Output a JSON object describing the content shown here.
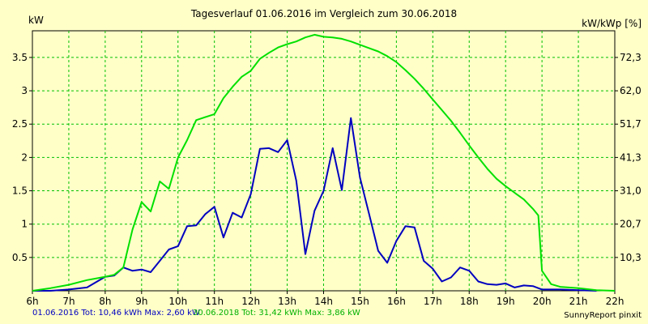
{
  "chart_data": {
    "type": "line",
    "title": "Tagesverlauf 01.06.2016 im Vergleich zum 30.06.2018",
    "ylabel_left": "kW",
    "ylabel_right": "kW/kWp [%]",
    "x_ticks": [
      "6h",
      "7h",
      "8h",
      "9h",
      "10h",
      "11h",
      "12h",
      "13h",
      "14h",
      "15h",
      "16h",
      "17h",
      "18h",
      "19h",
      "20h",
      "21h",
      "22h"
    ],
    "xlim": [
      6,
      22
    ],
    "ylim": [
      0,
      3.9
    ],
    "y_ticks": [
      0.5,
      1,
      1.5,
      2,
      2.5,
      3,
      3.5
    ],
    "y_right_ticks": [
      "10,3",
      "20,7",
      "31,0",
      "41,3",
      "51,7",
      "62,0",
      "72,3"
    ],
    "grid": true,
    "series": [
      {
        "name": "01.06.2016",
        "color": "#0000c0",
        "x": [
          6.0,
          6.5,
          7.0,
          7.5,
          8.0,
          8.25,
          8.5,
          8.75,
          9.0,
          9.25,
          9.5,
          9.75,
          10.0,
          10.25,
          10.5,
          10.75,
          11.0,
          11.25,
          11.5,
          11.75,
          12.0,
          12.25,
          12.5,
          12.75,
          13.0,
          13.25,
          13.5,
          13.75,
          14.0,
          14.25,
          14.5,
          14.75,
          15.0,
          15.25,
          15.5,
          15.75,
          16.0,
          16.25,
          16.5,
          16.75,
          17.0,
          17.25,
          17.5,
          17.75,
          18.0,
          18.25,
          18.5,
          18.75,
          19.0,
          19.25,
          19.5,
          19.75,
          20.0,
          20.5,
          21.0,
          21.5
        ],
        "values": [
          0.0,
          0.0,
          0.02,
          0.05,
          0.21,
          0.23,
          0.35,
          0.3,
          0.32,
          0.28,
          0.45,
          0.62,
          0.67,
          0.97,
          0.98,
          1.15,
          1.26,
          0.8,
          1.17,
          1.1,
          1.45,
          2.13,
          2.14,
          2.08,
          2.26,
          1.65,
          0.55,
          1.2,
          1.5,
          2.14,
          1.51,
          2.59,
          1.7,
          1.15,
          0.6,
          0.42,
          0.75,
          0.97,
          0.95,
          0.45,
          0.33,
          0.14,
          0.2,
          0.35,
          0.3,
          0.14,
          0.1,
          0.09,
          0.11,
          0.05,
          0.08,
          0.07,
          0.02,
          0.02,
          0.01,
          0.0
        ]
      },
      {
        "name": "30.06.2018",
        "color": "#00e000",
        "x": [
          6.0,
          6.5,
          7.0,
          7.5,
          8.0,
          8.25,
          8.5,
          8.75,
          9.0,
          9.25,
          9.5,
          9.75,
          10.0,
          10.25,
          10.5,
          11.0,
          11.25,
          11.5,
          11.75,
          12.0,
          12.25,
          12.5,
          12.75,
          13.0,
          13.25,
          13.5,
          13.75,
          14.0,
          14.25,
          14.5,
          14.75,
          15.0,
          15.25,
          15.5,
          15.75,
          16.0,
          16.25,
          16.5,
          16.75,
          17.0,
          17.25,
          17.5,
          17.75,
          18.0,
          18.25,
          18.5,
          18.75,
          19.0,
          19.25,
          19.5,
          19.75,
          19.9,
          20.0,
          20.25,
          20.5,
          21.0,
          21.5,
          22.0
        ],
        "values": [
          0.0,
          0.04,
          0.09,
          0.16,
          0.21,
          0.24,
          0.35,
          0.92,
          1.33,
          1.19,
          1.64,
          1.53,
          2.0,
          2.26,
          2.56,
          2.65,
          2.89,
          3.06,
          3.21,
          3.3,
          3.48,
          3.57,
          3.65,
          3.7,
          3.74,
          3.8,
          3.84,
          3.81,
          3.8,
          3.78,
          3.74,
          3.69,
          3.64,
          3.59,
          3.52,
          3.43,
          3.31,
          3.18,
          3.03,
          2.87,
          2.71,
          2.55,
          2.37,
          2.18,
          2.0,
          1.83,
          1.68,
          1.57,
          1.47,
          1.37,
          1.23,
          1.13,
          0.3,
          0.1,
          0.06,
          0.04,
          0.01,
          0.0
        ]
      }
    ],
    "footer_series_1": "01.06.2016 Tot: 10,46 kWh Max: 2,60 kW",
    "footer_series_2": "30.06.2018 Tot: 31,42 kWh Max: 3,86 kW",
    "credit": "SunnyReport pinxit"
  }
}
